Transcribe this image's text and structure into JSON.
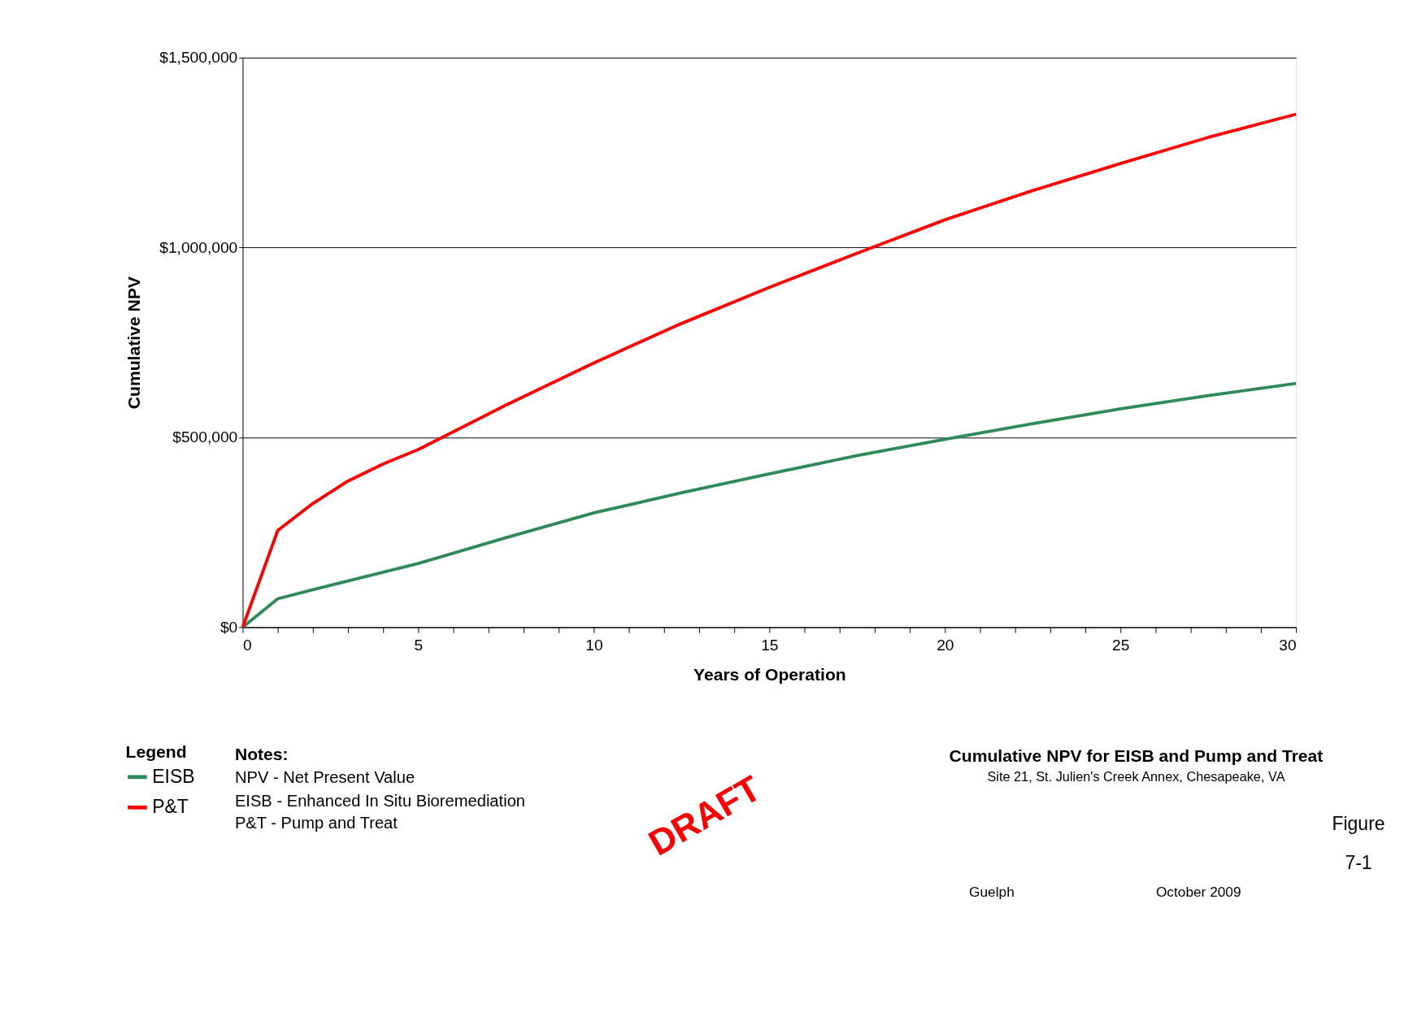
{
  "chart_data": {
    "type": "line",
    "title": "Cumulative NPV for EISB and Pump and Treat",
    "subtitle": "Site 21, St. Julien's Creek Annex, Chesapeake, VA",
    "xlabel": "Years of Operation",
    "ylabel": "Cumulative NPV",
    "legend_title": "Legend",
    "legend": "bottom left",
    "grid": "y",
    "line_style": "solid",
    "marker": "none",
    "xlim": [
      0,
      30
    ],
    "ylim": [
      0,
      1500000
    ],
    "xticks": [
      0,
      {
        "value": 1,
        "label": null
      },
      {
        "value": 2,
        "label": null
      },
      {
        "value": 3,
        "label": null
      },
      {
        "value": 4,
        "label": null
      },
      5,
      {
        "value": 6,
        "label": null
      },
      {
        "value": 7,
        "label": null
      },
      {
        "value": 8,
        "label": null
      },
      {
        "value": 9,
        "label": null
      },
      10,
      {
        "value": 11,
        "label": null
      },
      {
        "value": 12,
        "label": null
      },
      {
        "value": 13,
        "label": null
      },
      {
        "value": 14,
        "label": null
      },
      15,
      {
        "value": 16,
        "label": null
      },
      {
        "value": 17,
        "label": null
      },
      {
        "value": 18,
        "label": null
      },
      {
        "value": 19,
        "label": null
      },
      20,
      {
        "value": 21,
        "label": null
      },
      {
        "value": 22,
        "label": null
      },
      {
        "value": 23,
        "label": null
      },
      {
        "value": 24,
        "label": null
      },
      25,
      {
        "value": 26,
        "label": null
      },
      {
        "value": 27,
        "label": null
      },
      {
        "value": 28,
        "label": null
      },
      {
        "value": 29,
        "label": null
      },
      30
    ],
    "yticks": [
      {
        "value": 0,
        "label": "$0"
      },
      {
        "value": 500000,
        "label": "$500,000"
      },
      {
        "value": 1000000,
        "label": "$1,000,000"
      },
      {
        "value": 1500000,
        "label": "$1,500,000"
      }
    ],
    "x": [
      0,
      1,
      2,
      3,
      4,
      5,
      7.5,
      10,
      12.5,
      15,
      17.5,
      20,
      22.5,
      25,
      27.5,
      30
    ],
    "series": [
      {
        "name": "EISB",
        "color": "#2e8b57",
        "values": [
          0,
          75000,
          99000,
          122000,
          145000,
          168000,
          236000,
          301000,
          354000,
          404000,
          452000,
          495000,
          536000,
          575000,
          610000,
          642000
        ]
      },
      {
        "name": "P&T",
        "color": "#ff0000",
        "values": [
          0,
          255000,
          326000,
          385000,
          430000,
          468000,
          585000,
          696000,
          800000,
          895000,
          985000,
          1073000,
          1150000,
          1221000,
          1290000,
          1351000
        ]
      }
    ],
    "annotations": [
      "Notes:",
      "NPV - Net Present Value",
      "EISB - Enhanced In Situ Bioremediation",
      "P&T - Pump and Treat",
      "DRAFT",
      "Figure",
      "7-1",
      "Guelph",
      "October 2009"
    ]
  }
}
